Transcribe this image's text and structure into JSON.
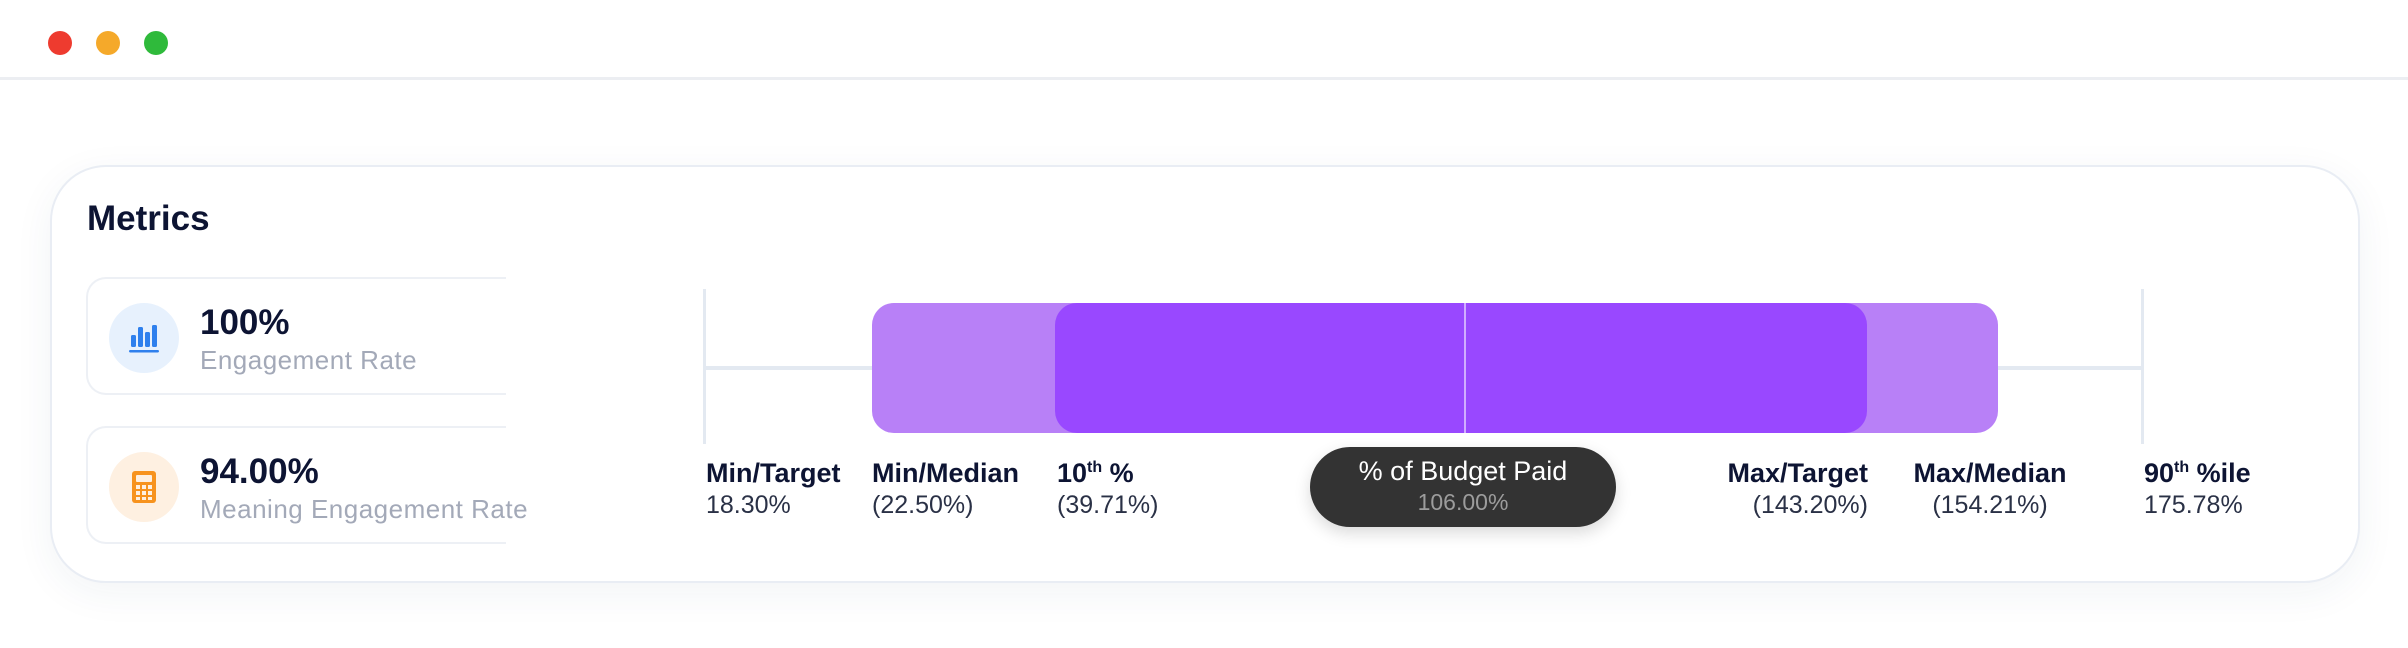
{
  "window": {
    "controls": [
      "close",
      "minimize",
      "maximize"
    ]
  },
  "card": {
    "title": "Metrics"
  },
  "metrics": [
    {
      "value": "100%",
      "label": "Engagement Rate",
      "icon": "bar-chart-icon",
      "icon_color": "#2f80ed"
    },
    {
      "value": "94.00%",
      "label": "Meaning Engagement Rate",
      "icon": "calculator-icon",
      "icon_color": "#f7931e"
    }
  ],
  "range": {
    "colors": {
      "outer_band": "#b880f7",
      "inner_band": "#9948ff",
      "track": "#e3e9f1"
    },
    "scale_min_pct": 18.3,
    "scale_max_pct": 175.78,
    "outer_band_pct": [
      22.5,
      154.21
    ],
    "inner_band_pct": [
      39.71,
      143.2
    ],
    "marker_pct": 106.0,
    "labels": {
      "min_target": {
        "title": "Min/Target",
        "value": "18.30%"
      },
      "min_median": {
        "title": "Min/Median",
        "value": "(22.50%)"
      },
      "p10": {
        "title_prefix": "10",
        "title_sup": "th",
        "title_suffix": " %",
        "value": "(39.71%)"
      },
      "max_target": {
        "title": "Max/Target",
        "value": "(143.20%)"
      },
      "max_median": {
        "title": "Max/Median",
        "value": "(154.21%)"
      },
      "p90": {
        "title_prefix": "90",
        "title_sup": "th",
        "title_suffix": " %ile",
        "value": "175.78%"
      }
    },
    "tooltip": {
      "title": "% of Budget Paid",
      "value": "106.00%"
    }
  }
}
